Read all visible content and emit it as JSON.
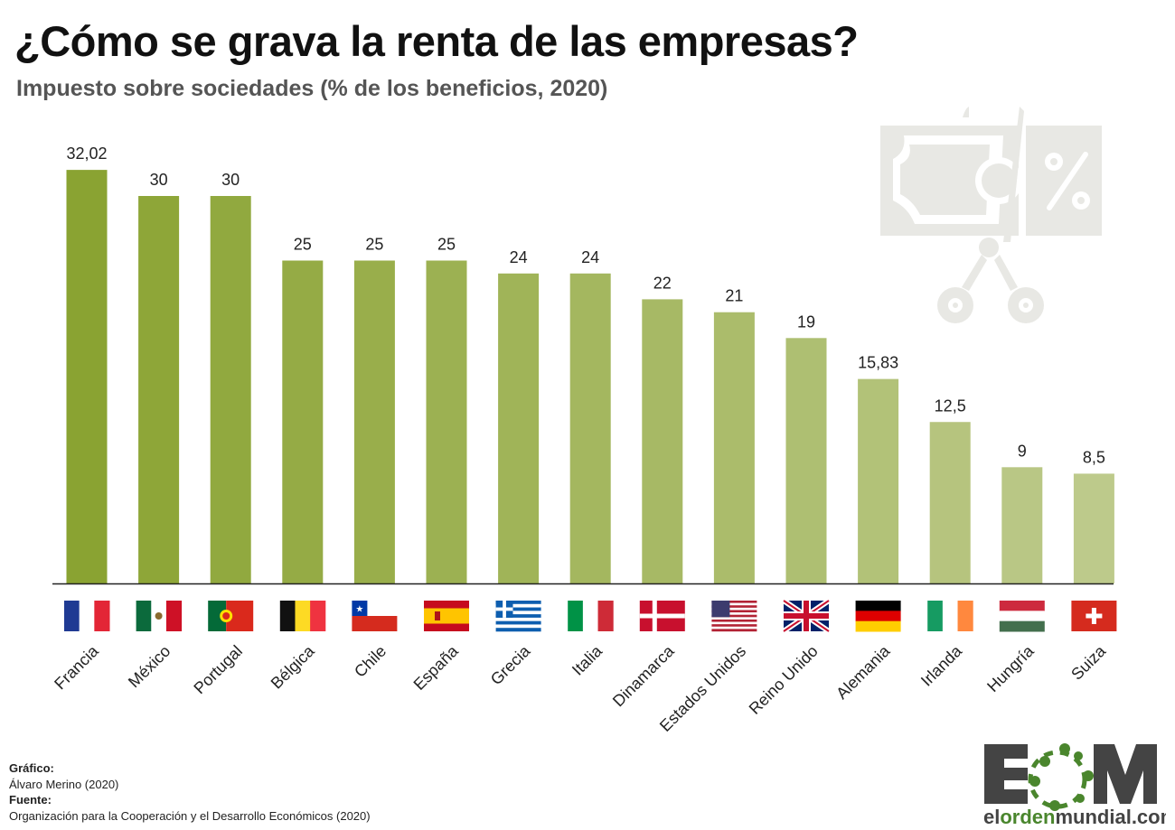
{
  "title": "¿Cómo se grava la renta de las empresas?",
  "subtitle": "Impuesto sobre sociedades (% de los beneficios, 2020)",
  "chart_data": {
    "type": "bar",
    "title": "¿Cómo se grava la renta de las empresas?",
    "subtitle": "Impuesto sobre sociedades (% de los beneficios, 2020)",
    "categories": [
      "Francia",
      "México",
      "Portugal",
      "Bélgica",
      "Chile",
      "España",
      "Grecia",
      "Italia",
      "Dinamarca",
      "Estados Unidos",
      "Reino Unido",
      "Alemania",
      "Irlanda",
      "Hungría",
      "Suiza"
    ],
    "values": [
      32.02,
      30,
      30,
      25,
      25,
      25,
      24,
      24,
      22,
      21,
      19,
      15.83,
      12.5,
      9,
      8.5
    ],
    "data_labels": [
      "32,02",
      "30",
      "30",
      "25",
      "25",
      "25",
      "24",
      "24",
      "22",
      "21",
      "19",
      "15,83",
      "12,5",
      "9",
      "8,5"
    ],
    "flags": [
      "flag-france",
      "flag-mexico",
      "flag-portugal",
      "flag-belgium",
      "flag-chile",
      "flag-spain",
      "flag-greece",
      "flag-italy",
      "flag-denmark",
      "flag-usa",
      "flag-uk",
      "flag-germany",
      "flag-ireland",
      "flag-hungary",
      "flag-switzerland"
    ],
    "ylim": [
      0,
      33
    ],
    "grid": false,
    "bar_color_start": "#8aa332",
    "bar_color_end": "#bdca8b"
  },
  "decor_icon": "scissors-cutting-banknote-percent-icon",
  "credits": {
    "grafico_label": "Gráfico:",
    "grafico_value": "Álvaro Merino (2020)",
    "fuente_label": "Fuente:",
    "fuente_value": "Organización para la Cooperación y el Desarrollo Económicos (2020)"
  },
  "logo": {
    "letters": "EOM",
    "site_pre": "el",
    "site_mid": "orden",
    "site_post": "mundial.com",
    "green": "#4a862d",
    "grey": "#444444"
  }
}
